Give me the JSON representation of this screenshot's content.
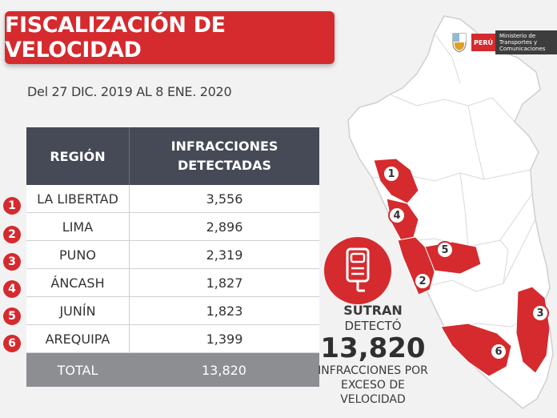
{
  "title": "FISCALIZACIÓN DE VELOCIDAD",
  "date_range": "Del 27 DIC. 2019 AL 8 ENE. 2020",
  "table": {
    "header_region": "REGIÓN",
    "header_infractions": "INFRACCIONES DETECTADAS",
    "rows": [
      {
        "rank": "1",
        "region": "LA LIBERTAD",
        "value": "3,556"
      },
      {
        "rank": "2",
        "region": "LIMA",
        "value": "2,896"
      },
      {
        "rank": "3",
        "region": "PUNO",
        "value": "2,319"
      },
      {
        "rank": "4",
        "region": "ÁNCASH",
        "value": "1,827"
      },
      {
        "rank": "5",
        "region": "JUNÍN",
        "value": "1,823"
      },
      {
        "rank": "6",
        "region": "AREQUIPA",
        "value": "1,399"
      }
    ],
    "total_label": "TOTAL",
    "total_value": "13,820"
  },
  "logo": {
    "country": "PERÚ",
    "ministry": "Ministerio de Transportes y Comunicaciones"
  },
  "callout": {
    "line1": "SUTRAN",
    "line2": "DETECTÓ",
    "big": "13,820",
    "line3": "INFRACCIONES POR",
    "line4": "EXCESO DE VELOCIDAD",
    "icon": "speed-sensor-icon"
  },
  "map_labels": [
    "1",
    "4",
    "5",
    "2",
    "3",
    "6"
  ],
  "colors": {
    "accent": "#d52a2e",
    "header": "#454a56",
    "total": "#8c8e92"
  }
}
